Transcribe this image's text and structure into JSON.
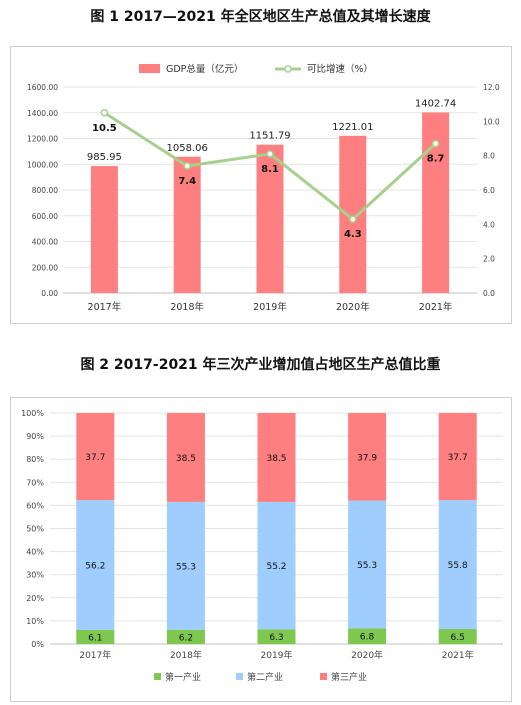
{
  "figure1": {
    "title": "图 1 2017—2021 年全区地区生产总值及其增长速度",
    "chart_data": {
      "type": "bar+line",
      "categories": [
        "2017年",
        "2018年",
        "2019年",
        "2020年",
        "2021年"
      ],
      "series": [
        {
          "name": "GDP总量（亿元）",
          "type": "bar",
          "axis": "left",
          "values": [
            985.95,
            1058.06,
            1151.79,
            1221.01,
            1402.74
          ],
          "labels": [
            "985.95",
            "1058.06",
            "1151.79",
            "1221.01",
            "1402.74"
          ]
        },
        {
          "name": "可比增速（%）",
          "type": "line",
          "axis": "right",
          "values": [
            10.5,
            7.4,
            8.1,
            4.3,
            8.7
          ],
          "labels": [
            "10.5",
            "7.4",
            "8.1",
            "4.3",
            "8.7"
          ]
        }
      ],
      "left_ticks": [
        "0.00",
        "200.00",
        "400.00",
        "600.00",
        "800.00",
        "1000.00",
        "1200.00",
        "1400.00",
        "1600.00"
      ],
      "right_ticks": [
        "0.0",
        "2.0",
        "4.0",
        "6.0",
        "8.0",
        "10.0",
        "12.0"
      ],
      "ylim_left": [
        0,
        1600
      ],
      "ylim_right": [
        0,
        12
      ],
      "grid": true,
      "legend_position": "top",
      "colors": {
        "bar": "#fe7f7f",
        "line": "#a7d08c",
        "marker_fill": "#ffffff"
      }
    }
  },
  "figure2": {
    "title": "图 2 2017-2021 年三次产业增加值占地区生产总值比重",
    "chart_data": {
      "type": "stacked-bar",
      "categories": [
        "2017年",
        "2018年",
        "2019年",
        "2020年",
        "2021年"
      ],
      "series": [
        {
          "name": "第一产业",
          "values": [
            6.1,
            6.2,
            6.3,
            6.8,
            6.5
          ],
          "labels": [
            "6.1",
            "6.2",
            "6.3",
            "6.8",
            "6.5"
          ],
          "color": "#7ec850"
        },
        {
          "name": "第二产业",
          "values": [
            56.2,
            55.3,
            55.2,
            55.3,
            55.8
          ],
          "labels": [
            "56.2",
            "55.3",
            "55.2",
            "55.3",
            "55.8"
          ],
          "color": "#9fcdfd"
        },
        {
          "name": "第三产业",
          "values": [
            37.7,
            38.5,
            38.5,
            37.9,
            37.7
          ],
          "labels": [
            "37.7",
            "38.5",
            "38.5",
            "37.9",
            "37.7"
          ],
          "color": "#fe7f7f"
        }
      ],
      "y_ticks": [
        "0%",
        "10%",
        "20%",
        "30%",
        "40%",
        "50%",
        "60%",
        "70%",
        "80%",
        "90%",
        "100%"
      ],
      "ylim": [
        0,
        100
      ],
      "grid": true,
      "legend_position": "bottom"
    }
  }
}
